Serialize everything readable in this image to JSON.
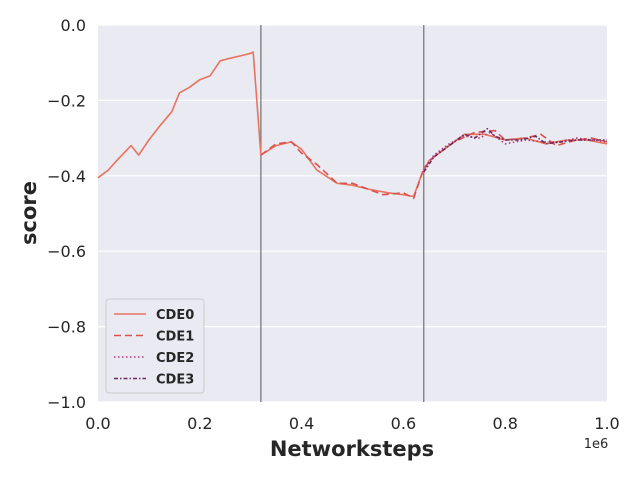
{
  "chart_data": {
    "type": "line",
    "title": "",
    "xlabel": "Networksteps",
    "ylabel": "score",
    "x_multiplier_label": "1e6",
    "xlim": [
      0.0,
      1.0
    ],
    "ylim": [
      -1.0,
      0.0
    ],
    "grid": true,
    "legend_position": "lower-left",
    "xticks": [
      0.0,
      0.2,
      0.4,
      0.6,
      0.8,
      1.0
    ],
    "xtick_labels": [
      "0.0",
      "0.2",
      "0.4",
      "0.6",
      "0.8",
      "1.0"
    ],
    "yticks": [
      0.0,
      -0.2,
      -0.4,
      -0.6,
      -0.8,
      -1.0
    ],
    "ytick_labels": [
      "0.0",
      "−0.2",
      "−0.4",
      "−0.6",
      "−0.8",
      "−1.0"
    ],
    "vlines": [
      0.32,
      0.64
    ],
    "series": [
      {
        "name": "CDE0",
        "color": "#e8735f",
        "dash": "solid",
        "x": [
          0.0,
          0.02,
          0.04,
          0.065,
          0.08,
          0.1,
          0.12,
          0.145,
          0.16,
          0.18,
          0.2,
          0.22,
          0.24,
          0.26,
          0.28,
          0.3,
          0.305,
          0.32,
          0.35,
          0.38,
          0.4,
          0.43,
          0.47,
          0.5,
          0.53,
          0.57,
          0.6,
          0.62,
          0.635,
          0.65,
          0.68,
          0.72,
          0.76,
          0.8,
          0.84,
          0.88,
          0.92,
          0.96,
          1.0
        ],
        "y": [
          -0.405,
          -0.385,
          -0.355,
          -0.32,
          -0.345,
          -0.305,
          -0.27,
          -0.23,
          -0.18,
          -0.165,
          -0.145,
          -0.135,
          -0.095,
          -0.088,
          -0.082,
          -0.075,
          -0.072,
          -0.345,
          -0.32,
          -0.31,
          -0.33,
          -0.385,
          -0.42,
          -0.425,
          -0.435,
          -0.445,
          -0.45,
          -0.455,
          -0.4,
          -0.36,
          -0.33,
          -0.29,
          -0.29,
          -0.305,
          -0.3,
          -0.315,
          -0.305,
          -0.305,
          -0.315
        ]
      },
      {
        "name": "CDE1",
        "color": "#d9534f",
        "dash": "dashed",
        "x": [
          0.32,
          0.35,
          0.38,
          0.4,
          0.43,
          0.47,
          0.5,
          0.53,
          0.56,
          0.6,
          0.62,
          0.64,
          0.66,
          0.7,
          0.74,
          0.78,
          0.8,
          0.84,
          0.87,
          0.9,
          0.94,
          0.97,
          1.0
        ],
        "y": [
          -0.345,
          -0.315,
          -0.31,
          -0.34,
          -0.37,
          -0.42,
          -0.42,
          -0.435,
          -0.45,
          -0.445,
          -0.46,
          -0.38,
          -0.35,
          -0.31,
          -0.285,
          -0.28,
          -0.305,
          -0.3,
          -0.29,
          -0.32,
          -0.305,
          -0.3,
          -0.31
        ]
      },
      {
        "name": "CDE2",
        "color": "#b03a7a",
        "dash": "dotted",
        "x": [
          0.64,
          0.66,
          0.69,
          0.72,
          0.75,
          0.77,
          0.8,
          0.84,
          0.88,
          0.91,
          0.94,
          0.97,
          1.0
        ],
        "y": [
          -0.385,
          -0.345,
          -0.315,
          -0.295,
          -0.3,
          -0.285,
          -0.315,
          -0.305,
          -0.31,
          -0.31,
          -0.3,
          -0.305,
          -0.31
        ]
      },
      {
        "name": "CDE3",
        "color": "#6e2a5e",
        "dash": "dashdot",
        "x": [
          0.64,
          0.66,
          0.69,
          0.72,
          0.74,
          0.765,
          0.78,
          0.8,
          0.83,
          0.86,
          0.88,
          0.91,
          0.94,
          0.97,
          1.0
        ],
        "y": [
          -0.39,
          -0.35,
          -0.32,
          -0.29,
          -0.3,
          -0.275,
          -0.295,
          -0.305,
          -0.305,
          -0.295,
          -0.315,
          -0.31,
          -0.305,
          -0.305,
          -0.305
        ]
      }
    ]
  }
}
